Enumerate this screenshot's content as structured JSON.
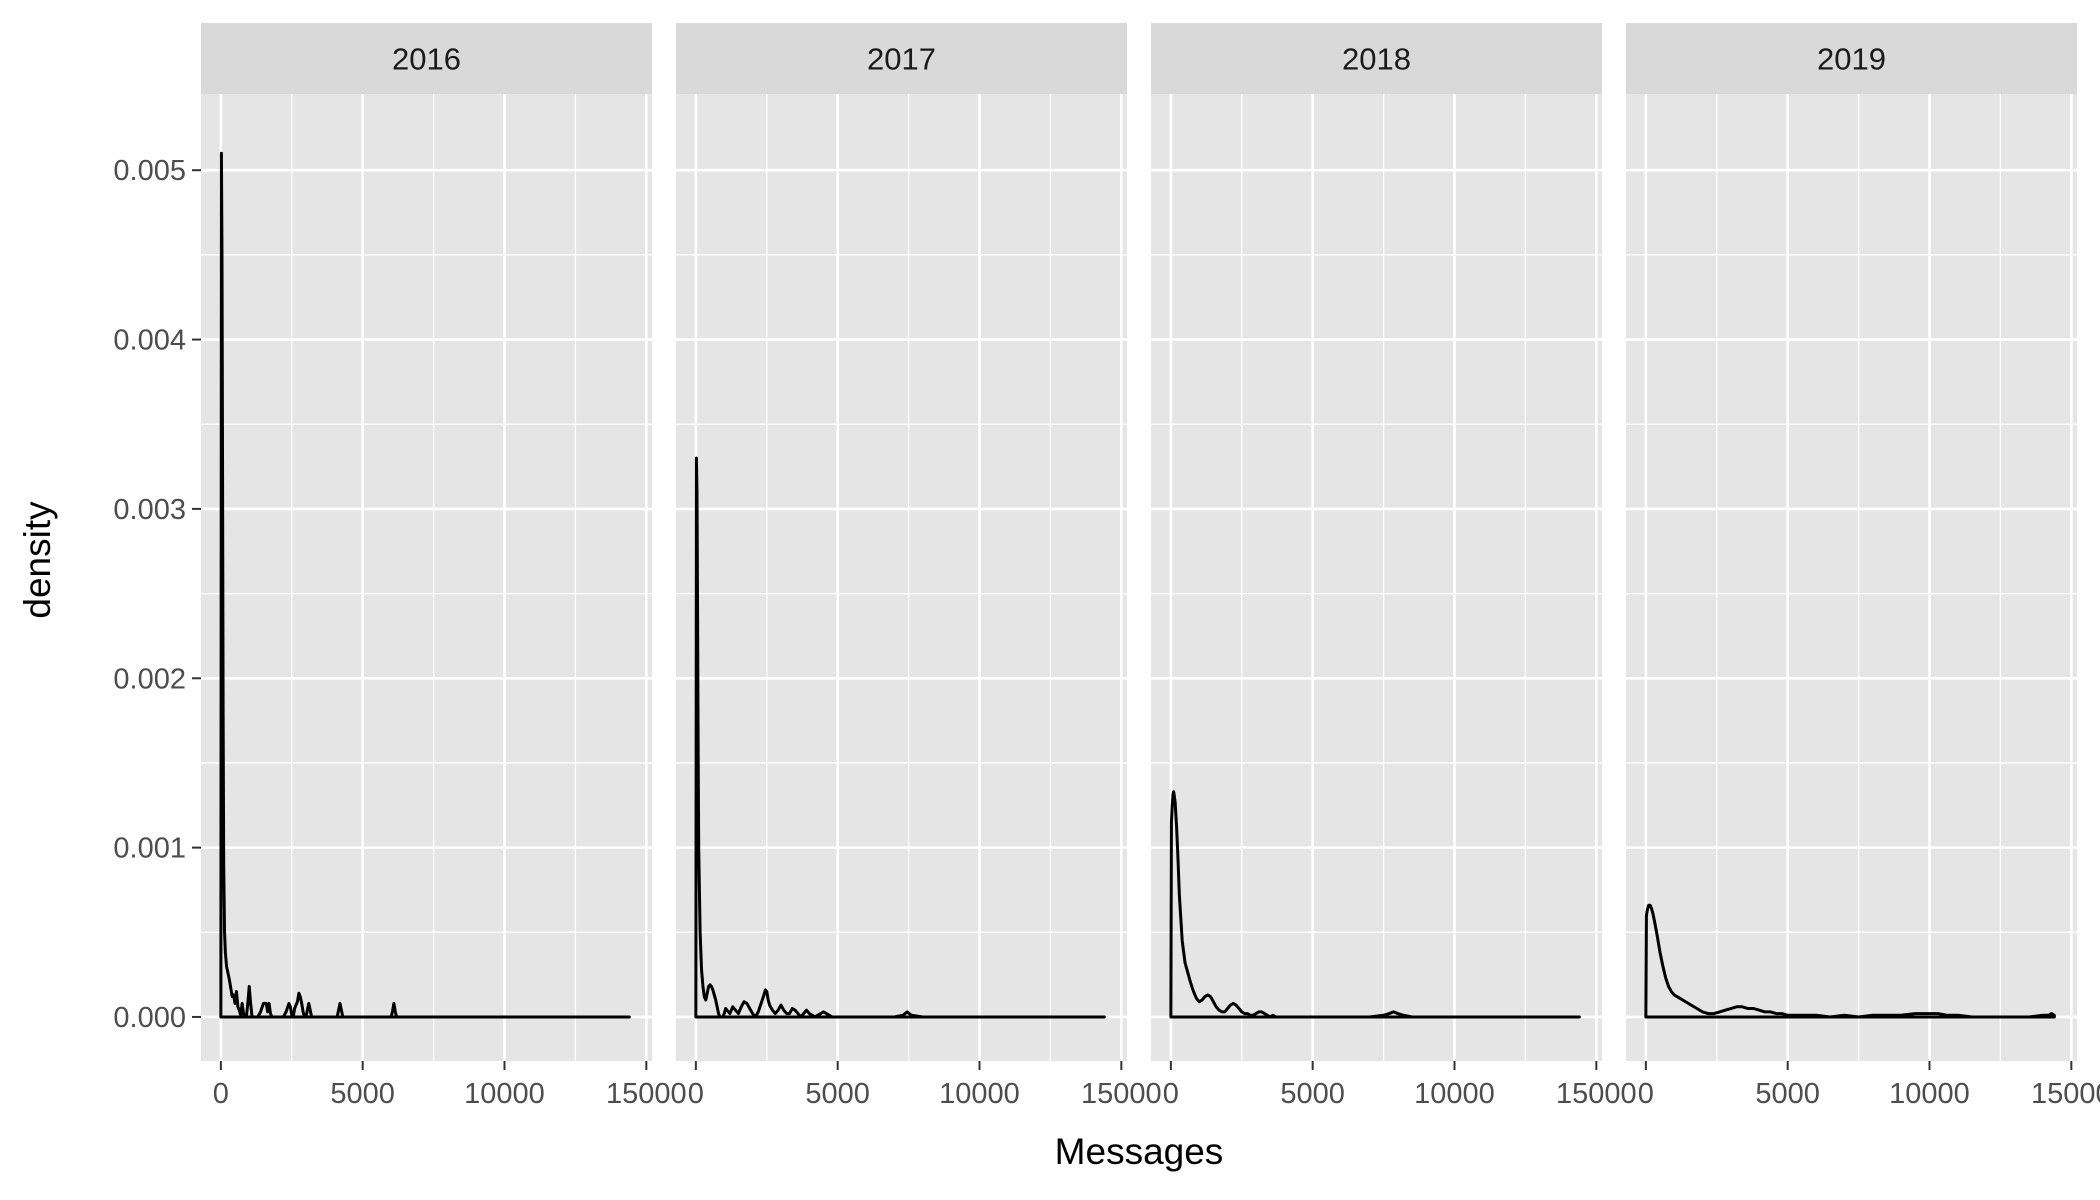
{
  "chart_data": {
    "type": "area",
    "xlabel": "Messages",
    "ylabel": "density",
    "xlim": [
      -700,
      15200
    ],
    "ylim": [
      -0.00026,
      0.00545
    ],
    "x_ticks": [
      0,
      5000,
      10000,
      15000
    ],
    "x_tick_labels": [
      "0",
      "5000",
      "10000",
      "15000"
    ],
    "y_ticks": [
      0.0,
      0.001,
      0.002,
      0.003,
      0.004,
      0.005
    ],
    "y_tick_labels": [
      "0.000",
      "0.001",
      "0.002",
      "0.003",
      "0.004",
      "0.005"
    ],
    "grid": true,
    "colors": {
      "panel_bg": "#e5e5e5",
      "strip_bg": "#d9d9d9",
      "grid": "#ffffff",
      "line": "#000000"
    },
    "facets": [
      {
        "label": "2016",
        "x": [
          0,
          20,
          40,
          60,
          80,
          100,
          130,
          160,
          200,
          250,
          300,
          350,
          400,
          450,
          500,
          550,
          600,
          650,
          700,
          750,
          800,
          850,
          900,
          950,
          1000,
          1050,
          1100,
          1150,
          1200,
          1300,
          1400,
          1500,
          1600,
          1650,
          1700,
          1750,
          1800,
          1900,
          2000,
          2100,
          2200,
          2300,
          2400,
          2450,
          2500,
          2550,
          2600,
          2700,
          2750,
          2800,
          2850,
          2900,
          2950,
          3000,
          3050,
          3100,
          3200,
          3300,
          3350,
          3400,
          3500,
          3700,
          3900,
          4100,
          4150,
          4200,
          4250,
          4300,
          4500,
          5000,
          5500,
          6000,
          6050,
          6100,
          6150,
          6200,
          6400,
          7000,
          9000,
          12000,
          14400
        ],
        "y": [
          0,
          0.0051,
          0.0045,
          0.0032,
          0.0018,
          0.0009,
          0.0005,
          0.00038,
          0.0003,
          0.00026,
          0.00022,
          0.00017,
          0.00012,
          0.00013,
          8e-05,
          0.00015,
          6e-05,
          4e-05,
          1e-05,
          8e-05,
          2e-05,
          0.0,
          0.0,
          8e-05,
          0.00018,
          8e-05,
          0.0,
          0.0,
          0.0,
          0.0,
          3e-05,
          8e-05,
          8e-05,
          3e-05,
          8e-05,
          2e-05,
          0.0,
          0.0,
          0.0,
          0.0,
          0.0,
          3e-05,
          8e-05,
          6e-05,
          1e-05,
          0.0,
          5e-05,
          9e-05,
          0.00014,
          0.00012,
          8e-05,
          3e-05,
          0.0,
          0.0,
          4e-05,
          8e-05,
          0.0,
          0.0,
          0.0,
          0.0,
          0.0,
          0.0,
          0.0,
          0.0,
          4e-05,
          8e-05,
          4e-05,
          0.0,
          0.0,
          0.0,
          0.0,
          0.0,
          3e-05,
          8e-05,
          3e-05,
          0.0,
          0.0,
          0.0,
          0.0,
          0.0,
          0.0
        ]
      },
      {
        "label": "2017",
        "x": [
          0,
          20,
          40,
          60,
          80,
          100,
          150,
          200,
          250,
          300,
          350,
          400,
          450,
          500,
          550,
          600,
          650,
          700,
          750,
          800,
          850,
          900,
          950,
          1000,
          1050,
          1100,
          1200,
          1300,
          1400,
          1500,
          1600,
          1700,
          1800,
          1900,
          2000,
          2100,
          2200,
          2300,
          2400,
          2450,
          2500,
          2550,
          2600,
          2700,
          2800,
          2900,
          3000,
          3100,
          3200,
          3300,
          3400,
          3500,
          3600,
          3700,
          3800,
          3900,
          4000,
          4200,
          4400,
          4500,
          4600,
          4800,
          5000,
          6000,
          7000,
          7300,
          7450,
          7600,
          8000,
          10000,
          12000,
          14400
        ],
        "y": [
          0,
          0.0033,
          0.0031,
          0.0024,
          0.0016,
          0.001,
          0.0005,
          0.00028,
          0.00018,
          0.00012,
          0.0001,
          0.00014,
          0.00018,
          0.00019,
          0.00018,
          0.00016,
          0.00013,
          0.0001,
          6e-05,
          2e-05,
          0.0,
          0.0,
          0.0,
          2e-05,
          5e-05,
          4e-05,
          2e-05,
          6e-05,
          4e-05,
          2e-05,
          6e-05,
          9e-05,
          8e-05,
          5e-05,
          2e-05,
          0.0,
          3e-05,
          8e-05,
          0.00013,
          0.00016,
          0.00015,
          0.0001,
          7e-05,
          4e-05,
          2e-05,
          4e-05,
          7e-05,
          4e-05,
          2e-05,
          2e-05,
          5e-05,
          4e-05,
          2e-05,
          0.0,
          2e-05,
          4e-05,
          2e-05,
          0.0,
          2e-05,
          3e-05,
          2e-05,
          0.0,
          0.0,
          0.0,
          0.0,
          1e-05,
          3e-05,
          1e-05,
          0.0,
          0.0,
          0.0,
          0.0
        ]
      },
      {
        "label": "2018",
        "x": [
          0,
          20,
          50,
          80,
          100,
          150,
          200,
          250,
          300,
          400,
          500,
          600,
          700,
          800,
          900,
          1000,
          1100,
          1200,
          1300,
          1400,
          1500,
          1600,
          1700,
          1800,
          1900,
          2000,
          2100,
          2200,
          2300,
          2400,
          2500,
          2600,
          2700,
          2800,
          2900,
          3000,
          3100,
          3200,
          3300,
          3400,
          3500,
          3600,
          3700,
          3800,
          4000,
          5000,
          6000,
          7000,
          7500,
          7700,
          7850,
          8000,
          8200,
          8500,
          10000,
          12000,
          14400
        ],
        "y": [
          0,
          0.00115,
          0.00125,
          0.00132,
          0.00133,
          0.00127,
          0.00113,
          0.00094,
          0.00072,
          0.00045,
          0.00032,
          0.00026,
          0.0002,
          0.00015,
          0.00011,
          9e-05,
          0.0001,
          0.00012,
          0.00013,
          0.00012,
          9e-05,
          6e-05,
          4e-05,
          3e-05,
          3e-05,
          5e-05,
          7e-05,
          8e-05,
          7e-05,
          5e-05,
          3e-05,
          2e-05,
          2e-05,
          1e-05,
          1e-05,
          2e-05,
          3e-05,
          3e-05,
          2e-05,
          1e-05,
          0.0,
          1e-05,
          0.0,
          0.0,
          0.0,
          0.0,
          0.0,
          0.0,
          1e-05,
          2e-05,
          3e-05,
          2e-05,
          1e-05,
          0.0,
          0.0,
          0.0,
          0.0
        ]
      },
      {
        "label": "2019",
        "x": [
          0,
          20,
          50,
          80,
          100,
          150,
          200,
          250,
          300,
          400,
          500,
          600,
          700,
          800,
          900,
          1000,
          1200,
          1400,
          1600,
          1800,
          2000,
          2200,
          2400,
          2600,
          2800,
          3000,
          3200,
          3400,
          3600,
          3800,
          4000,
          4200,
          4400,
          4600,
          4800,
          5000,
          5200,
          5500,
          6000,
          6500,
          7000,
          7500,
          8000,
          8500,
          9000,
          9500,
          9800,
          10000,
          10300,
          10600,
          11000,
          11500,
          12000,
          12500,
          13000,
          13500,
          14000,
          14200,
          14300,
          14400
        ],
        "y": [
          0,
          0.0006,
          0.00063,
          0.00065,
          0.00066,
          0.00066,
          0.00064,
          0.00061,
          0.00057,
          0.00048,
          0.00038,
          0.0003,
          0.00023,
          0.00018,
          0.00015,
          0.00013,
          0.00011,
          9e-05,
          7e-05,
          5e-05,
          3e-05,
          2e-05,
          2e-05,
          3e-05,
          4e-05,
          5e-05,
          6e-05,
          6e-05,
          5e-05,
          5e-05,
          4e-05,
          3e-05,
          3e-05,
          2e-05,
          2e-05,
          1e-05,
          1e-05,
          1e-05,
          1e-05,
          0.0,
          1e-05,
          0.0,
          1e-05,
          1e-05,
          1e-05,
          2e-05,
          2e-05,
          2e-05,
          2e-05,
          1e-05,
          1e-05,
          0.0,
          0.0,
          0.0,
          0.0,
          0.0,
          1e-05,
          1e-05,
          2e-05,
          1e-05
        ]
      }
    ]
  }
}
